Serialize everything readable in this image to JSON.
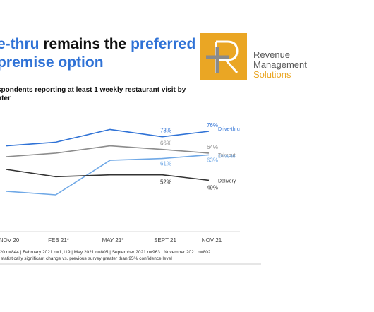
{
  "header": {
    "title_part1": "e-thru",
    "title_part2": " remains the ",
    "title_part3": "preferred",
    "title_line2": "premise option",
    "subtitle_line1": "spondents reporting at least 1 weekly restaurant visit by",
    "subtitle_line2": "nter"
  },
  "logo": {
    "line1": "Revenue",
    "line2": "Management",
    "line3": "Solutions",
    "box_color": "#eaa624",
    "accent_color": "#eaa624"
  },
  "chart_data": {
    "type": "line",
    "categories": [
      "NOV 20",
      "FEB 21*",
      "MAY 21*",
      "SEPT 21",
      "NOV 21"
    ],
    "series": [
      {
        "name": "Drive-thru",
        "color": "#2f72d6",
        "values": [
          68,
          70,
          77,
          73,
          76
        ],
        "labels": [
          "",
          "",
          "",
          "73%",
          "76%"
        ]
      },
      {
        "name": "Takeout",
        "color": "#8c8c8c",
        "values": [
          62,
          64,
          68,
          66,
          64
        ],
        "labels": [
          "",
          "",
          "",
          "66%",
          "64%"
        ]
      },
      {
        "name": "Drive-in",
        "color": "#6fa8e6",
        "values": [
          43,
          41,
          60,
          61,
          63
        ],
        "labels": [
          "",
          "",
          "",
          "61%",
          "63%"
        ]
      },
      {
        "name": "Delivery",
        "color": "#333333",
        "values": [
          55,
          51,
          52,
          52,
          49
        ],
        "labels": [
          "",
          "",
          "",
          "52%",
          "49%"
        ]
      }
    ],
    "ylim": [
      20,
      90
    ],
    "grid": false,
    "legend": "right-end"
  },
  "footnote": {
    "line1": "020 n=844  |  February 2021 n=1,119  |  May 2021 n=805  |  September 2021 n=963  |  November 2021 n=802",
    "line2": "s statistically significant change vs. previous survey greater than 95% confidence level"
  }
}
